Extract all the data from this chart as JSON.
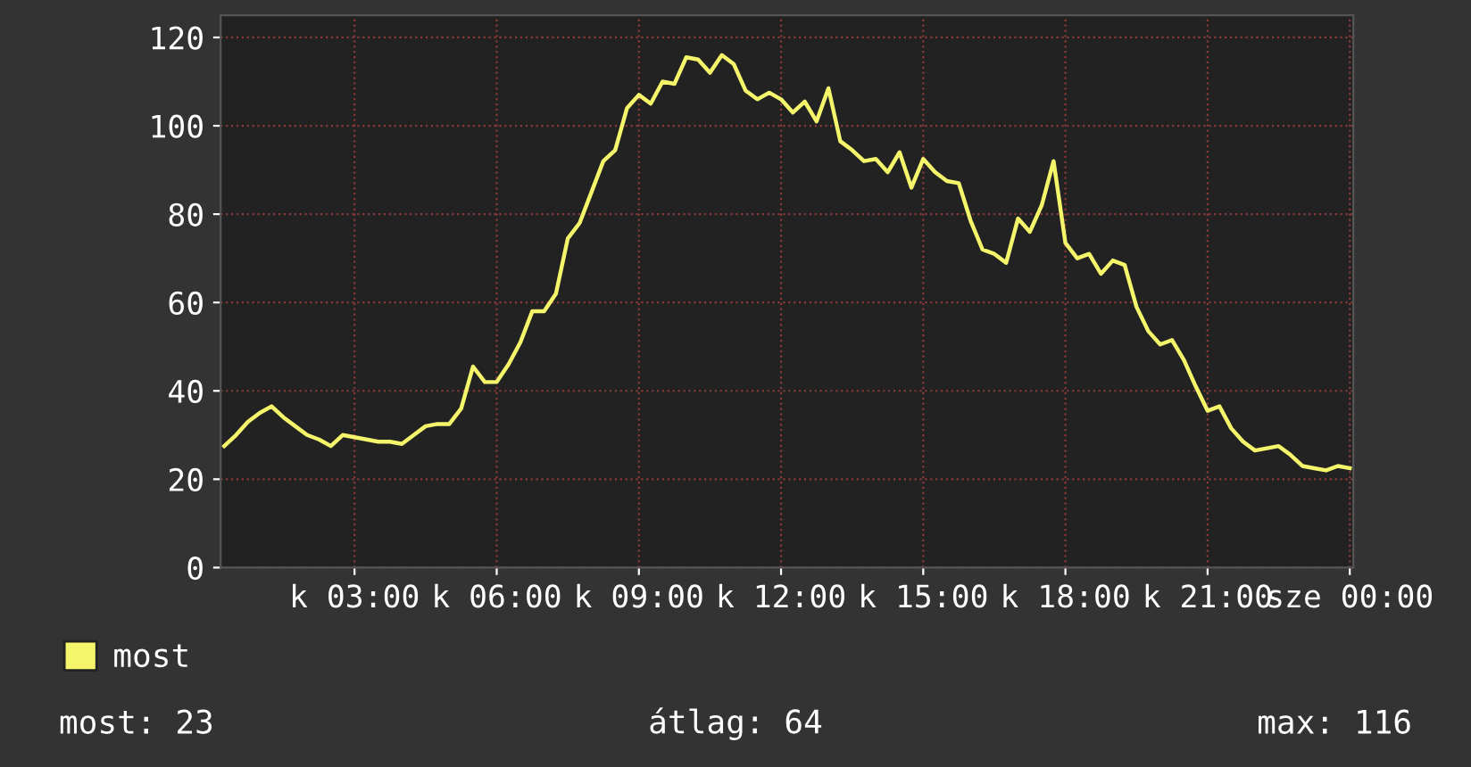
{
  "chart_data": {
    "type": "line",
    "categories": [
      null,
      null,
      null,
      null,
      null,
      null,
      null,
      null,
      null,
      null,
      null,
      "k 03:00",
      null,
      null,
      null,
      null,
      null,
      null,
      null,
      null,
      null,
      null,
      null,
      "k 06:00",
      null,
      null,
      null,
      null,
      null,
      null,
      null,
      null,
      null,
      null,
      null,
      "k 09:00",
      null,
      null,
      null,
      null,
      null,
      null,
      null,
      null,
      null,
      null,
      null,
      "k 12:00",
      null,
      null,
      null,
      null,
      null,
      null,
      null,
      null,
      null,
      null,
      null,
      "k 15:00",
      null,
      null,
      null,
      null,
      null,
      null,
      null,
      null,
      null,
      null,
      null,
      "k 18:00",
      null,
      null,
      null,
      null,
      null,
      null,
      null,
      null,
      null,
      null,
      null,
      "k 21:00",
      null,
      null,
      null,
      null,
      null,
      null,
      null,
      null,
      null,
      null,
      null,
      "sze 00:00"
    ],
    "series": [
      {
        "name": "most",
        "color": "#f5f56b",
        "values": [
          27.5,
          30,
          33,
          35,
          36.5,
          34,
          32,
          30,
          29,
          27.5,
          30,
          29.5,
          29,
          28.5,
          28.5,
          28,
          30,
          32,
          32.5,
          32.5,
          36,
          45.5,
          42,
          42,
          46,
          51,
          58,
          58,
          62,
          74.5,
          78,
          85,
          92,
          94.5,
          104,
          107,
          105,
          110,
          109.5,
          115.5,
          115,
          112,
          116,
          114,
          108,
          106,
          107.5,
          106,
          103,
          105.5,
          101,
          108.5,
          96.5,
          94.5,
          92,
          92.5,
          89.5,
          94,
          86,
          92.5,
          89.5,
          87.5,
          87,
          78.5,
          72,
          71,
          69,
          79,
          76,
          82,
          92,
          73.5,
          70,
          71,
          66.5,
          69.5,
          68.5,
          59,
          53.5,
          50.5,
          51.5,
          47,
          41,
          35.5,
          36.5,
          31.5,
          28.5,
          26.5,
          27,
          27.5,
          25.5,
          23,
          22.5,
          22,
          23,
          22.5
        ]
      }
    ],
    "ylim": [
      0,
      125
    ],
    "yticks": [
      0,
      20,
      40,
      60,
      80,
      100,
      120
    ],
    "grid": true,
    "legend": "bottom left",
    "annotations": [
      "most: 23",
      "átlag: 64",
      "max: 116"
    ]
  }
}
